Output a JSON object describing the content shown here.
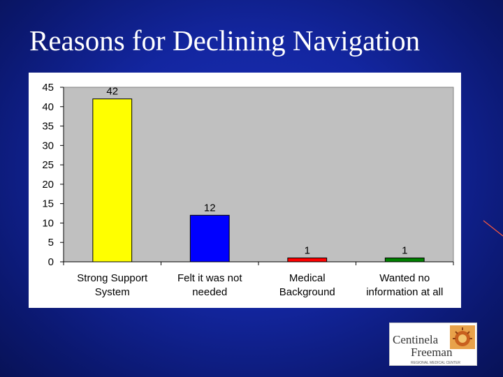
{
  "slide": {
    "title": "Reasons for Declining Navigation"
  },
  "chart_data": {
    "type": "bar",
    "title": "",
    "xlabel": "",
    "ylabel": "",
    "categories": [
      [
        "Strong Support",
        "System"
      ],
      [
        "Felt it was not",
        "needed"
      ],
      [
        "Medical",
        "Background"
      ],
      [
        "Wanted no",
        "information at all"
      ]
    ],
    "values": [
      42,
      12,
      1,
      1
    ],
    "bar_colors": [
      "#ffff00",
      "#0000ff",
      "#ff0000",
      "#008000"
    ],
    "ylim": [
      0,
      45
    ],
    "yticks": [
      0,
      5,
      10,
      15,
      20,
      25,
      30,
      35,
      40,
      45
    ],
    "grid": false,
    "legend": "none",
    "plot_background": "#c0c0c0",
    "data_labels": true
  },
  "logo": {
    "name_line1": "Centinela",
    "name_line2": "Freeman",
    "tagline": "REGIONAL MEDICAL CENTER"
  },
  "colors": {
    "background": "#1326a0",
    "title": "#ffffff",
    "logo_sun": "#d9822b",
    "logo_text": "#333333"
  }
}
